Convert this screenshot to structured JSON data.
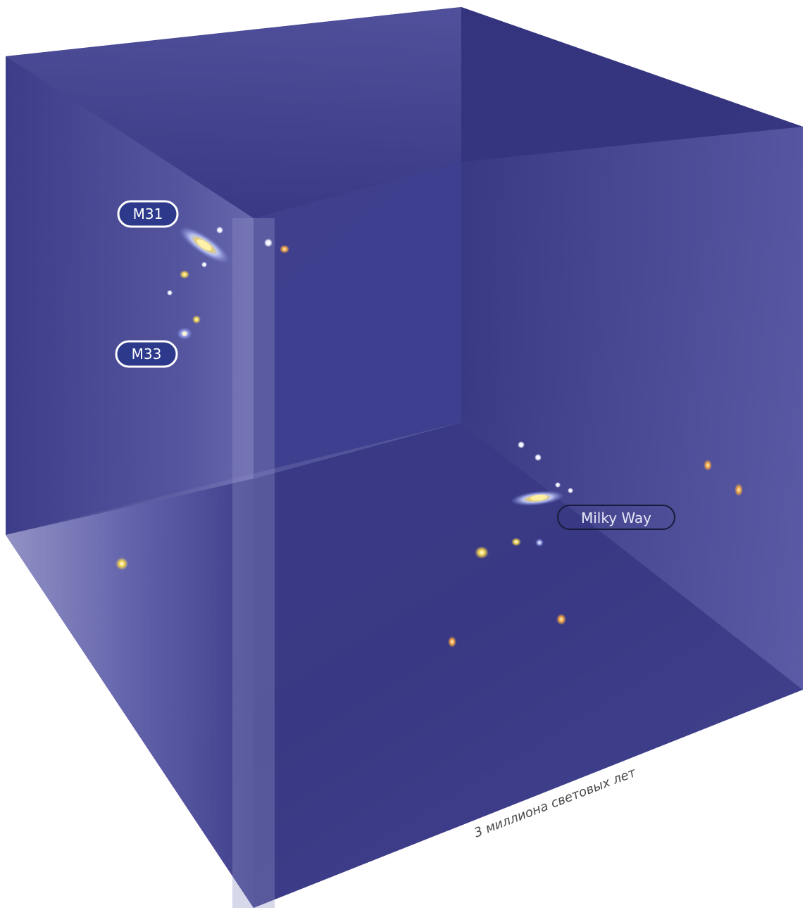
{
  "labels": {
    "m31": "M31",
    "m33": "M33",
    "milky_way": "Milky Way",
    "scale": "3 миллиона световых лет"
  },
  "colors": {
    "wall_dark": "#2f2f78",
    "wall_mid": "#4a4a96",
    "wall_light": "#8b8bc0",
    "badge_fill": "#2d3a8c",
    "badge_stroke": "#ffffff",
    "outline_label_stroke": "#1a1a3a",
    "scale_text": "#444444",
    "galaxy_yellow": "#f4d24a",
    "galaxy_orange": "#f0a040",
    "galaxy_white": "#f3f3ff",
    "galaxy_blue": "#9aa6e8"
  }
}
